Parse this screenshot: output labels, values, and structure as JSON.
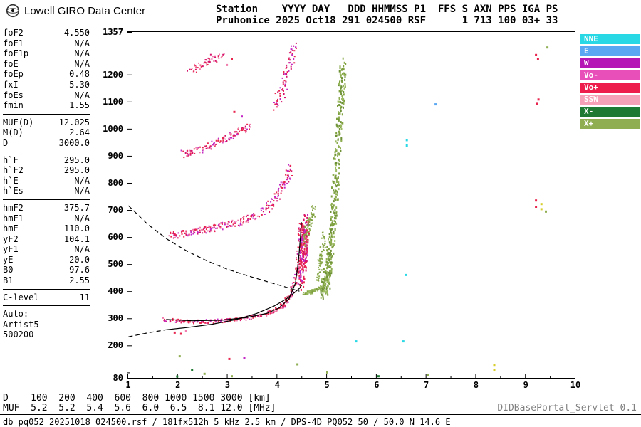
{
  "header": {
    "logo_text": "Lowell GIRO Data Center",
    "station_line1": "Station    YYYY DAY   DDD HHMMSS P1  FFS S AXN PPS IGA PS",
    "station_line2": "Pruhonice 2025 Oct18 291 024500 RSF      1 713 100 03+ 33"
  },
  "sidebar": {
    "groups": [
      {
        "separator": true,
        "rows": [
          [
            "foF2",
            "4.550"
          ],
          [
            "foF1",
            "N/A"
          ],
          [
            "foF1p",
            "N/A"
          ],
          [
            "foE",
            "N/A"
          ],
          [
            "foEp",
            "0.48"
          ],
          [
            "fxI",
            "5.30"
          ],
          [
            "foEs",
            "N/A"
          ],
          [
            "fmin",
            "1.55"
          ]
        ]
      },
      {
        "separator": true,
        "rows": [
          [
            "MUF(D)",
            "12.025"
          ],
          [
            "M(D)",
            "2.64"
          ],
          [
            "D",
            "3000.0"
          ]
        ]
      },
      {
        "separator": true,
        "rows": [
          [
            "h`F",
            "295.0"
          ],
          [
            "h`F2",
            "295.0"
          ],
          [
            "h`E",
            "N/A"
          ],
          [
            "h`Es",
            "N/A"
          ]
        ]
      },
      {
        "separator": true,
        "rows": [
          [
            "hmF2",
            "375.7"
          ],
          [
            "hmF1",
            "N/A"
          ],
          [
            "hmE",
            "110.0"
          ],
          [
            "yF2",
            "104.1"
          ],
          [
            "yF1",
            "N/A"
          ],
          [
            "yE",
            "20.0"
          ],
          [
            "B0",
            "97.6"
          ],
          [
            "B1",
            "2.55"
          ]
        ]
      },
      {
        "separator": true,
        "rows": [
          [
            "C-level",
            "11"
          ]
        ]
      },
      {
        "separator": false,
        "rows": [
          [
            "Auto:",
            ""
          ],
          [
            "Artist5",
            ""
          ],
          [
            "500200",
            ""
          ]
        ]
      }
    ]
  },
  "footer": {
    "d_line": "D    100  200  400  600  800 1000 1500 3000 [km]",
    "muf_line": "MUF  5.2  5.2  5.4  5.6  6.0  6.5  8.1 12.0 [MHz]",
    "info_line": "db pq052 20251018 024500.rsf / 181fx512h 5 kHz 2.5 km / DPS-4D PQ052 50 / 50.0 N 14.6 E",
    "servlet": "DIDBasePortal_Servlet 0.1"
  },
  "chart_data": {
    "type": "scatter",
    "xlabel": "[MHz]",
    "ylabel": "[km]",
    "x_range": [
      1,
      10
    ],
    "y_range": [
      80,
      1357
    ],
    "x_ticks": [
      1,
      2,
      3,
      4,
      5,
      6,
      7,
      8,
      9,
      10
    ],
    "x_minor_ticks": [
      1.5,
      2.5,
      3.5,
      4.5,
      5.5,
      6.5,
      7.5,
      8.5,
      9.5
    ],
    "y_ticks": [
      80,
      200,
      300,
      400,
      500,
      600,
      700,
      800,
      900,
      1000,
      1100,
      1200,
      1357
    ],
    "y_minor_ticks": [
      100
    ],
    "seed": 42,
    "legend": [
      {
        "label": "NNE",
        "color": "#29D8E5"
      },
      {
        "label": "E",
        "color": "#59A7F2"
      },
      {
        "label": "W",
        "color": "#B515B5"
      },
      {
        "label": "Vo-",
        "color": "#E94FB9"
      },
      {
        "label": "Vo+",
        "color": "#ED1E4C"
      },
      {
        "label": "SSW",
        "color": "#F7A1B8"
      },
      {
        "label": "X-",
        "color": "#1E7A33"
      },
      {
        "label": "X+",
        "color": "#8FAE52"
      }
    ],
    "colors": {
      "red": "#E8254F",
      "pink": "#F07FAF",
      "magenta": "#C428C4",
      "green": "#8FAE52",
      "dgreen": "#1E7A33",
      "cyan": "#29D8E5",
      "blue": "#59A7F2",
      "yellow": "#D6CE2A"
    },
    "traces": [
      {
        "name": "1st-hop O-mode F trace",
        "control": [
          [
            1.72,
            296
          ],
          [
            2.0,
            290
          ],
          [
            2.3,
            287
          ],
          [
            2.6,
            288
          ],
          [
            2.9,
            291
          ],
          [
            3.2,
            296
          ],
          [
            3.5,
            304
          ],
          [
            3.8,
            316
          ],
          [
            4.0,
            331
          ],
          [
            4.15,
            352
          ],
          [
            4.28,
            385
          ],
          [
            4.38,
            440
          ],
          [
            4.44,
            520
          ],
          [
            4.48,
            600
          ],
          [
            4.5,
            650
          ]
        ],
        "n": 300,
        "jf": 0.05,
        "jh": 7,
        "dot": [
          2,
          2
        ],
        "palette": [
          "#E8254F",
          "#E8254F",
          "#E8254F",
          "#D6126B",
          "#F07FAF",
          "#C428C4",
          "#E8254F"
        ]
      },
      {
        "name": "spread-F near foF2",
        "control": [
          [
            4.5,
            430
          ],
          [
            4.54,
            520
          ],
          [
            4.57,
            590
          ],
          [
            4.6,
            650
          ]
        ],
        "n": 160,
        "jf": 0.07,
        "jh": 35,
        "dot": [
          2,
          3
        ],
        "palette": [
          "#E8254F",
          "#D6126B",
          "#E8254F",
          "#C428C4"
        ]
      },
      {
        "name": "1st-hop X-mode low",
        "control": [
          [
            4.56,
            392
          ],
          [
            4.7,
            398
          ],
          [
            4.84,
            407
          ],
          [
            4.95,
            422
          ]
        ],
        "n": 80,
        "jf": 0.05,
        "jh": 6,
        "dot": [
          2,
          2
        ],
        "palette": [
          "#8FAE52",
          "#7FA03F",
          "#9CBB63"
        ]
      },
      {
        "name": "1st-hop X-mode wall to fxI",
        "control": [
          [
            4.95,
            405
          ],
          [
            5.0,
            430
          ],
          [
            5.05,
            480
          ],
          [
            5.1,
            560
          ],
          [
            5.15,
            680
          ],
          [
            5.2,
            820
          ],
          [
            5.25,
            980
          ],
          [
            5.3,
            1120
          ],
          [
            5.33,
            1240
          ]
        ],
        "n": 400,
        "jf": 0.07,
        "jh": 35,
        "dot": [
          2,
          3
        ],
        "palette": [
          "#8FAE52",
          "#7FA03F",
          "#9CBB63",
          "#6E9137"
        ]
      },
      {
        "name": "X-mode lower wall",
        "control": [
          [
            4.85,
            450
          ],
          [
            4.9,
            520
          ],
          [
            4.95,
            600
          ]
        ],
        "n": 60,
        "jf": 0.05,
        "jh": 25,
        "dot": [
          2,
          2
        ],
        "palette": [
          "#8FAE52",
          "#7FA03F"
        ]
      },
      {
        "name": "2nd-hop O-mode",
        "control": [
          [
            1.85,
            605
          ],
          [
            2.15,
            612
          ],
          [
            2.45,
            622
          ],
          [
            2.75,
            633
          ],
          [
            3.05,
            646
          ],
          [
            3.35,
            662
          ],
          [
            3.6,
            680
          ]
        ],
        "n": 170,
        "jf": 0.06,
        "jh": 13,
        "dot": [
          2,
          2
        ],
        "palette": [
          "#E8254F",
          "#E8254F",
          "#D6126B",
          "#F07FAF",
          "#C428C4"
        ]
      },
      {
        "name": "2nd-hop O-mode upper",
        "control": [
          [
            3.7,
            690
          ],
          [
            3.9,
            722
          ],
          [
            4.05,
            760
          ],
          [
            4.2,
            812
          ],
          [
            4.28,
            852
          ]
        ],
        "n": 80,
        "jf": 0.05,
        "jh": 18,
        "dot": [
          2,
          2
        ],
        "palette": [
          "#E8254F",
          "#D6126B",
          "#C428C4"
        ]
      },
      {
        "name": "2nd-hop X-mode",
        "control": [
          [
            4.55,
            580
          ],
          [
            4.63,
            625
          ],
          [
            4.7,
            668
          ],
          [
            4.75,
            705
          ]
        ],
        "n": 60,
        "jf": 0.05,
        "jh": 22,
        "dot": [
          2,
          2
        ],
        "palette": [
          "#8FAE52",
          "#7FA03F"
        ]
      },
      {
        "name": "3rd-hop O-mode",
        "control": [
          [
            2.1,
            905
          ],
          [
            2.4,
            920
          ],
          [
            2.7,
            940
          ],
          [
            3.0,
            965
          ],
          [
            3.25,
            990
          ],
          [
            3.45,
            1012
          ]
        ],
        "n": 110,
        "jf": 0.06,
        "jh": 14,
        "dot": [
          2,
          2
        ],
        "palette": [
          "#E8254F",
          "#D6126B",
          "#F07FAF",
          "#C428C4",
          "#E8254F"
        ]
      },
      {
        "name": "4th-hop O-mode high",
        "control": [
          [
            3.95,
            1080
          ],
          [
            4.1,
            1132
          ],
          [
            4.2,
            1192
          ],
          [
            4.3,
            1262
          ],
          [
            4.38,
            1312
          ]
        ],
        "n": 70,
        "jf": 0.06,
        "jh": 26,
        "dot": [
          2,
          2
        ],
        "palette": [
          "#E8254F",
          "#D6126B",
          "#C428C4"
        ]
      },
      {
        "name": "4th-hop O-mode left",
        "control": [
          [
            2.25,
            1215
          ],
          [
            2.5,
            1235
          ],
          [
            2.7,
            1255
          ],
          [
            2.92,
            1278
          ]
        ],
        "n": 50,
        "jf": 0.06,
        "jh": 16,
        "dot": [
          2,
          2
        ],
        "palette": [
          "#E8254F",
          "#F07FAF",
          "#D6126B"
        ]
      }
    ],
    "noise_points": [
      [
        2.05,
        160,
        "green"
      ],
      [
        2.3,
        110,
        "dgreen"
      ],
      [
        2.55,
        95,
        "green"
      ],
      [
        3.05,
        150,
        "red"
      ],
      [
        3.1,
        86,
        "green"
      ],
      [
        3.35,
        155,
        "magenta"
      ],
      [
        4.42,
        130,
        "green"
      ],
      [
        5.02,
        100,
        "green"
      ],
      [
        6.05,
        86,
        "dgreen"
      ],
      [
        5.6,
        215,
        "cyan"
      ],
      [
        6.55,
        215,
        "cyan"
      ],
      [
        6.6,
        460,
        "cyan"
      ],
      [
        6.62,
        958,
        "cyan"
      ],
      [
        6.62,
        938,
        "cyan"
      ],
      [
        7.05,
        90,
        "green"
      ],
      [
        7.2,
        1090,
        "blue"
      ],
      [
        8.38,
        108,
        "yellow"
      ],
      [
        8.38,
        128,
        "yellow"
      ],
      [
        9.22,
        1272,
        "red"
      ],
      [
        9.26,
        1258,
        "red"
      ],
      [
        9.27,
        1108,
        "red"
      ],
      [
        9.24,
        1092,
        "red"
      ],
      [
        9.22,
        735,
        "red"
      ],
      [
        9.22,
        712,
        "red"
      ],
      [
        9.33,
        722,
        "yellow"
      ],
      [
        9.33,
        703,
        "yellow"
      ],
      [
        9.42,
        694,
        "green"
      ],
      [
        9.45,
        1300,
        "green"
      ],
      [
        2.0,
        85,
        "dgreen"
      ],
      [
        3.3,
        1045,
        "magenta"
      ],
      [
        3.15,
        1062,
        "red"
      ],
      [
        3.0,
        1235,
        "pink"
      ],
      [
        3.1,
        1256,
        "red"
      ],
      [
        1.95,
        247,
        "red"
      ],
      [
        2.08,
        243,
        "red"
      ],
      [
        2.18,
        252,
        "pink"
      ]
    ],
    "curves": [
      {
        "name": "o-trace-fit",
        "style": "solid",
        "points": [
          [
            1.78,
            296
          ],
          [
            2.3,
            291
          ],
          [
            2.9,
            293
          ],
          [
            3.4,
            303
          ],
          [
            3.8,
            318
          ],
          [
            4.05,
            338
          ],
          [
            4.25,
            372
          ],
          [
            4.38,
            430
          ],
          [
            4.44,
            510
          ],
          [
            4.48,
            600
          ],
          [
            4.5,
            655
          ]
        ]
      },
      {
        "name": "true-height-profile",
        "style": "solid",
        "points": [
          [
            1.78,
            258
          ],
          [
            2.2,
            266
          ],
          [
            2.7,
            278
          ],
          [
            3.2,
            296
          ],
          [
            3.6,
            318
          ],
          [
            3.95,
            345
          ],
          [
            4.2,
            372
          ],
          [
            4.38,
            398
          ],
          [
            4.47,
            412
          ],
          [
            4.5,
            421
          ],
          [
            4.46,
            425
          ]
        ]
      },
      {
        "name": "transmission-curve",
        "style": "dashed",
        "points": [
          [
            1.02,
            716
          ],
          [
            1.4,
            648
          ],
          [
            1.8,
            592
          ],
          [
            2.2,
            548
          ],
          [
            2.6,
            512
          ],
          [
            3.0,
            482
          ],
          [
            3.4,
            458
          ],
          [
            3.8,
            436
          ],
          [
            4.1,
            420
          ],
          [
            4.35,
            406
          ],
          [
            4.46,
            400
          ]
        ]
      },
      {
        "name": "profile-extension",
        "style": "dashed",
        "points": [
          [
            1.02,
            232
          ],
          [
            1.4,
            246
          ],
          [
            1.78,
            258
          ]
        ]
      }
    ]
  }
}
